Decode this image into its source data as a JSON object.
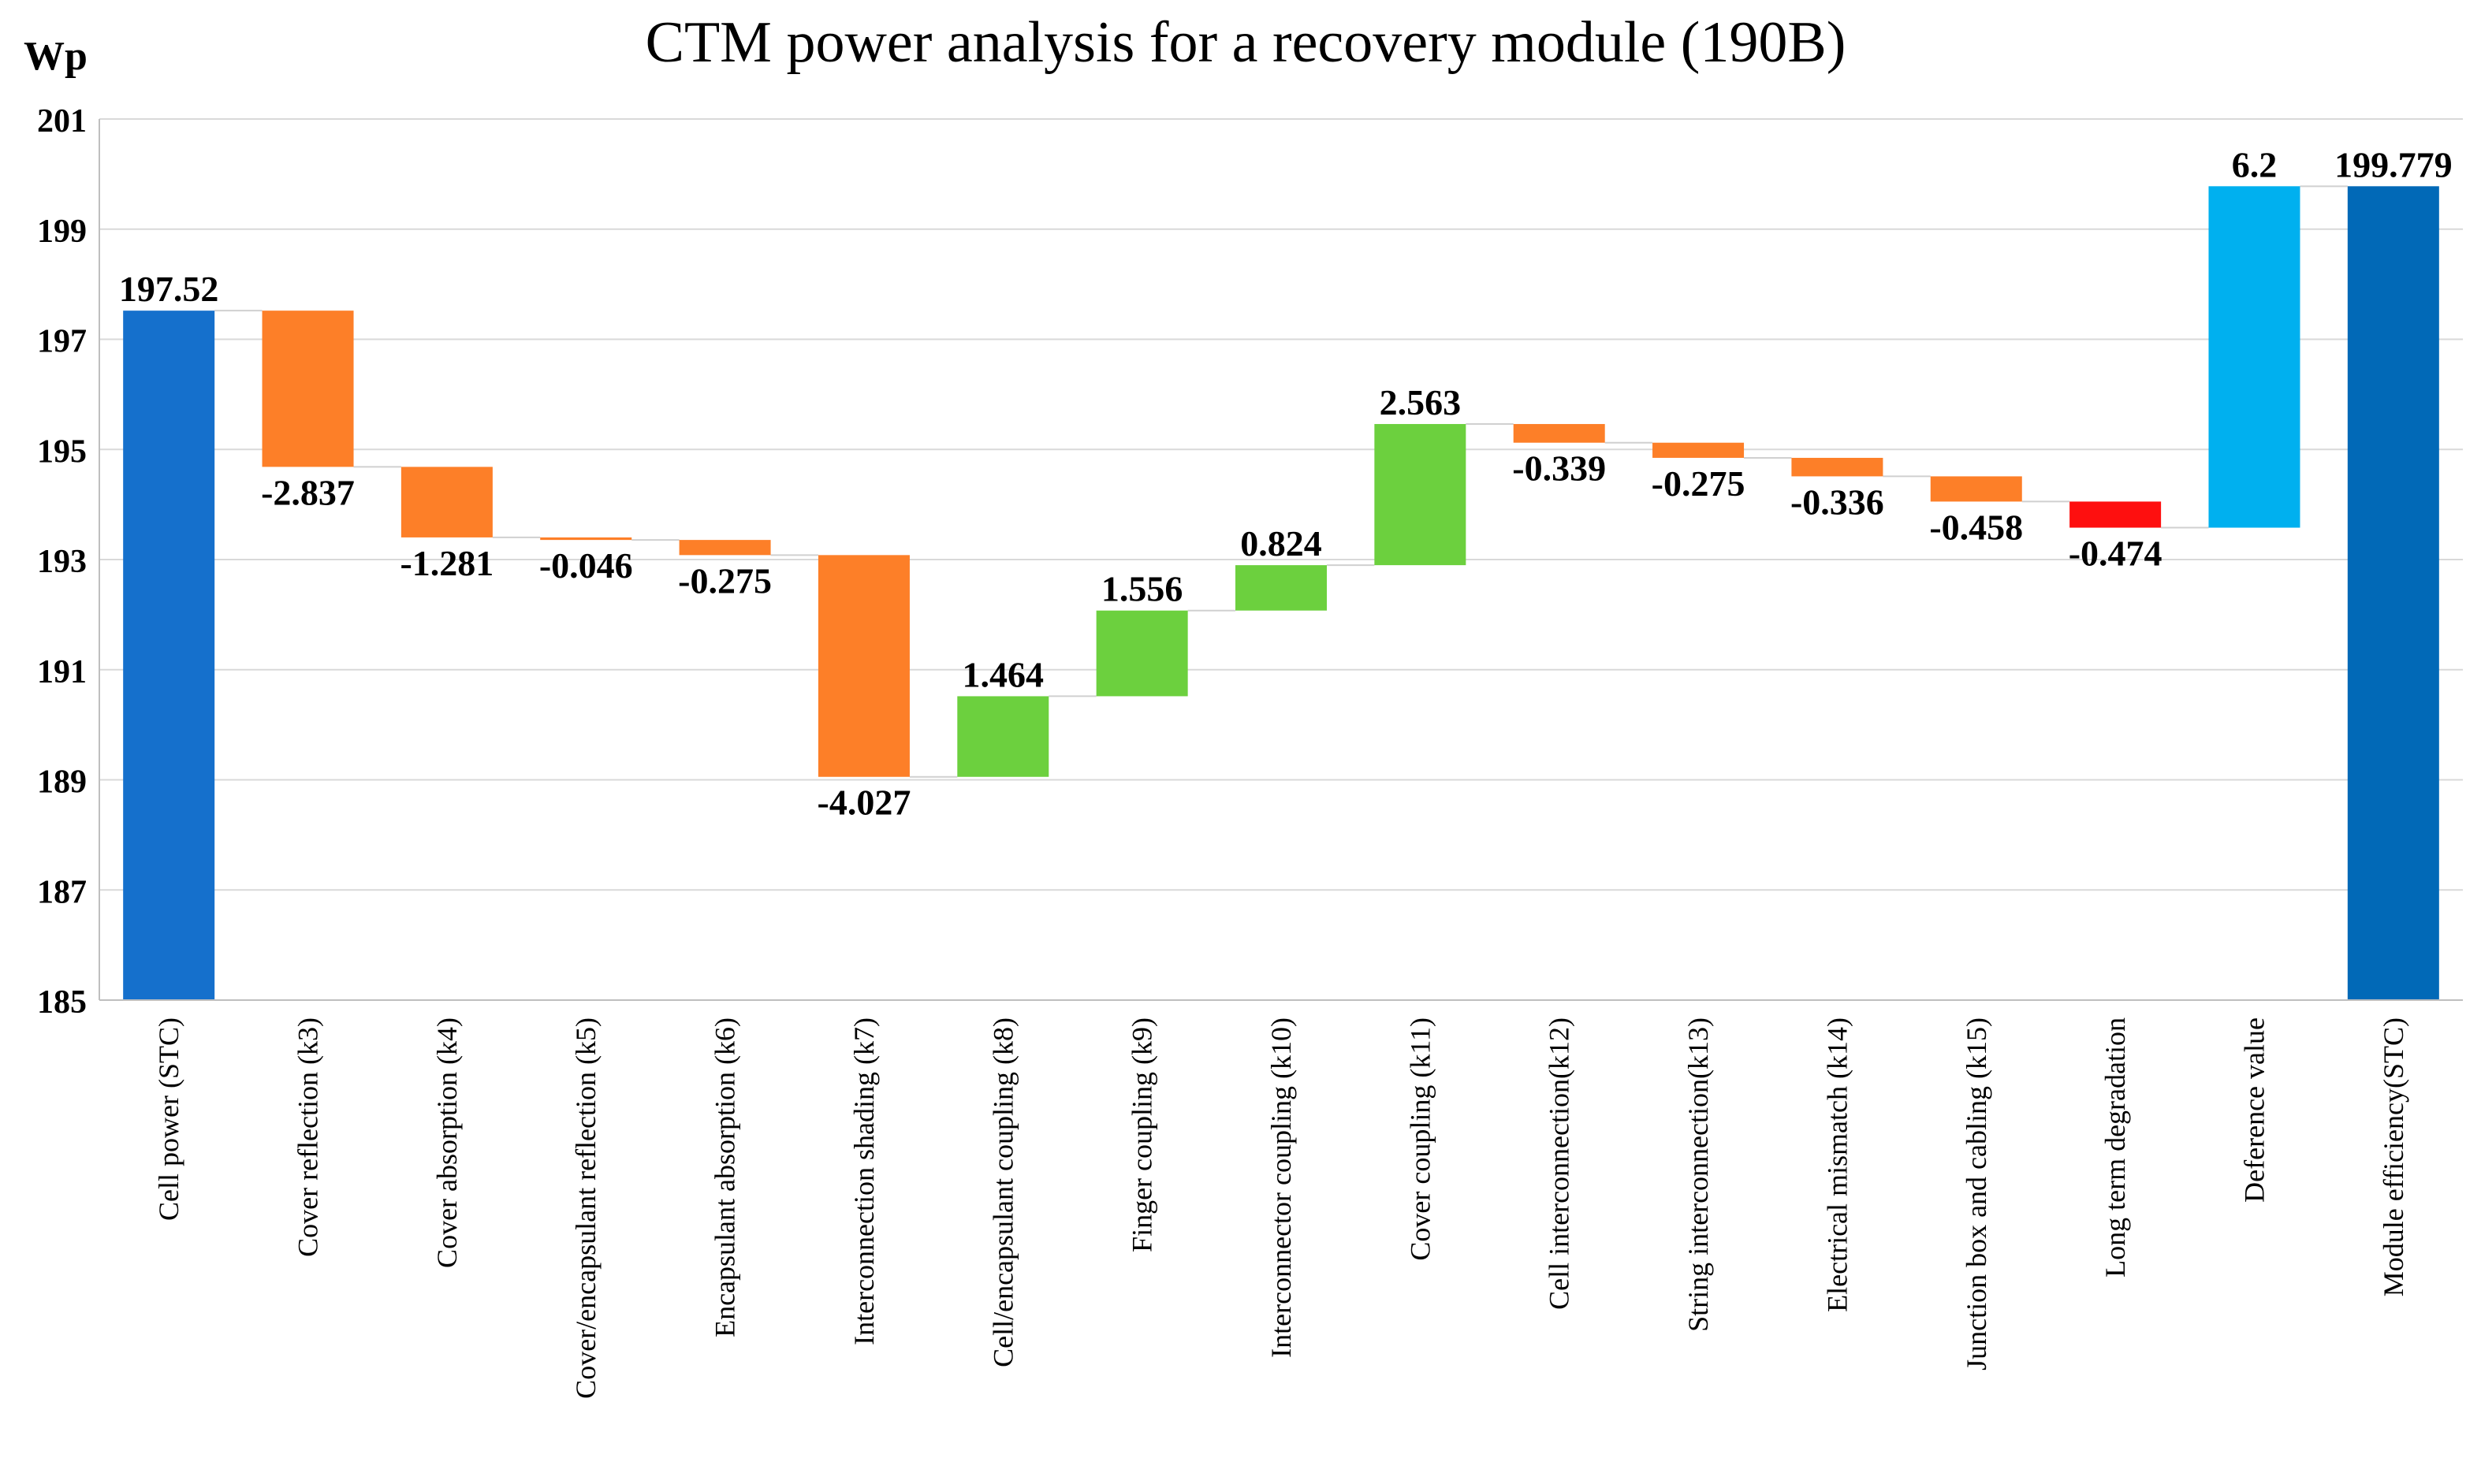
{
  "chart_data": {
    "type": "waterfall",
    "title": "CTM power analysis for a recovery module (190B)",
    "ylabel": "Wp",
    "ylim": [
      185,
      201
    ],
    "yticks": [
      185,
      187,
      189,
      191,
      193,
      195,
      197,
      199,
      201
    ],
    "grid": true,
    "bars": [
      {
        "category": "Cell power (STC)",
        "kind": "total",
        "start": 185,
        "end": 197.52,
        "label": "197.52",
        "color": "#1570cc"
      },
      {
        "category": "Cover reflection (k3)",
        "kind": "loss",
        "start": 197.52,
        "end": 194.683,
        "label": "-2.837",
        "color": "#fd7f28"
      },
      {
        "category": "Cover absorption (k4)",
        "kind": "loss",
        "start": 194.683,
        "end": 193.402,
        "label": "-1.281",
        "color": "#fd7f28"
      },
      {
        "category": "Cover/encapsulant reflection (k5)",
        "kind": "loss",
        "start": 193.402,
        "end": 193.356,
        "label": "-0.046",
        "color": "#fd7f28"
      },
      {
        "category": "Encapsulant absorption (k6)",
        "kind": "loss",
        "start": 193.356,
        "end": 193.081,
        "label": "-0.275",
        "color": "#fd7f28"
      },
      {
        "category": "Interconnection shading (k7)",
        "kind": "loss",
        "start": 193.081,
        "end": 189.054,
        "label": "-4.027",
        "color": "#fd7f28"
      },
      {
        "category": "Cell/encapsulant coupling (k8)",
        "kind": "gain",
        "start": 189.054,
        "end": 190.518,
        "label": "1.464",
        "color": "#6cd03e"
      },
      {
        "category": "Finger coupling (k9)",
        "kind": "gain",
        "start": 190.518,
        "end": 192.074,
        "label": "1.556",
        "color": "#6cd03e"
      },
      {
        "category": "Interconnector coupling (k10)",
        "kind": "gain",
        "start": 192.074,
        "end": 192.898,
        "label": "0.824",
        "color": "#6cd03e"
      },
      {
        "category": "Cover coupling (k11)",
        "kind": "gain",
        "start": 192.898,
        "end": 195.461,
        "label": "2.563",
        "color": "#6cd03e"
      },
      {
        "category": "Cell interconnection(k12)",
        "kind": "loss",
        "start": 195.461,
        "end": 195.122,
        "label": "-0.339",
        "color": "#fd7f28"
      },
      {
        "category": "String interconnection(k13)",
        "kind": "loss",
        "start": 195.122,
        "end": 194.847,
        "label": "-0.275",
        "color": "#fd7f28"
      },
      {
        "category": "Electrical mismatch (k14)",
        "kind": "loss",
        "start": 194.847,
        "end": 194.511,
        "label": "-0.336",
        "color": "#fd7f28"
      },
      {
        "category": "Junction box and cabling (k15)",
        "kind": "loss",
        "start": 194.511,
        "end": 194.053,
        "label": "-0.458",
        "color": "#fd7f28"
      },
      {
        "category": "Long term degradation",
        "kind": "loss",
        "start": 194.053,
        "end": 193.579,
        "label": "-0.474",
        "color": "#fe0f0f"
      },
      {
        "category": "Deference value",
        "kind": "gain",
        "start": 193.579,
        "end": 199.779,
        "label": "6.2",
        "color": "#00b0ef"
      },
      {
        "category": "Module efficiency(STC)",
        "kind": "total",
        "start": 185,
        "end": 199.779,
        "label": "199.779",
        "color": "#0169b7"
      }
    ]
  }
}
